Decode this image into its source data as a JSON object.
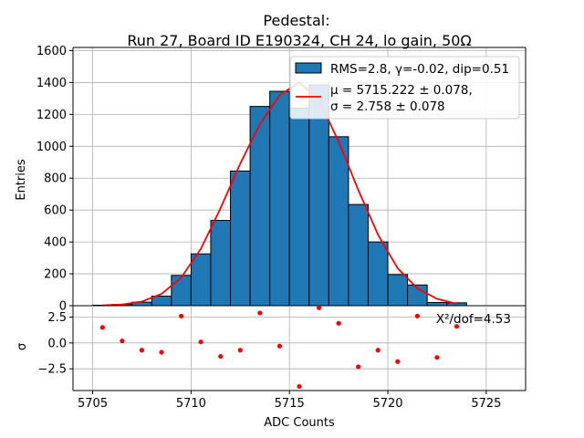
{
  "chart_data": [
    {
      "type": "bar",
      "panel": "histogram",
      "title_line1": "Pedestal:",
      "title_line2": "Run 27, Board ID E190324, CH 24, lo gain, 50Ω",
      "xlabel": "ADC Counts",
      "ylabel": "Entries",
      "xlim": [
        5704.0,
        5727.0
      ],
      "ylim": [
        0,
        1620
      ],
      "x_ticks": [
        5705,
        5710,
        5715,
        5720,
        5725
      ],
      "x_tick_labels": [
        "5705",
        "5710",
        "5715",
        "5720",
        "5725"
      ],
      "y_ticks": [
        0,
        200,
        400,
        600,
        800,
        1000,
        1200,
        1400,
        1600
      ],
      "y_tick_labels": [
        "0",
        "200",
        "400",
        "600",
        "800",
        "1000",
        "1200",
        "1400",
        "1600"
      ],
      "grid": true,
      "bin_edges": [
        5705,
        5706,
        5707,
        5708,
        5709,
        5710,
        5711,
        5712,
        5713,
        5714,
        5715,
        5716,
        5717,
        5718,
        5719,
        5720,
        5721,
        5722,
        5723,
        5724
      ],
      "bin_counts": [
        3,
        8,
        22,
        60,
        190,
        325,
        535,
        845,
        1250,
        1345,
        1240,
        1385,
        1060,
        635,
        400,
        195,
        130,
        20,
        18
      ],
      "bar_color": "#1f77b4",
      "fit_color": "#ff0000",
      "fit_curve": {
        "x": [
          5705.5,
          5706.5,
          5707.5,
          5708.5,
          5709.5,
          5710.5,
          5711.5,
          5712.5,
          5713.5,
          5714.5,
          5715.5,
          5716.5,
          5717.5,
          5718.5,
          5719.5,
          5720.5,
          5721.5,
          5722.5,
          5723.5
        ],
        "y": [
          2,
          8,
          26,
          74,
          176,
          357,
          611,
          891,
          1140,
          1320,
          1402,
          1290,
          1030,
          725,
          445,
          235,
          108,
          43,
          12
        ]
      },
      "legend": {
        "position": "top-right",
        "entries": [
          {
            "kind": "patch",
            "label": "RMS=2.8, γ=-0.02, dip=0.51"
          },
          {
            "kind": "line",
            "label_line1": "μ = 5715.222 ± 0.078,",
            "label_line2": "σ = 2.758 ± 0.078"
          }
        ]
      }
    },
    {
      "type": "scatter",
      "panel": "residuals",
      "ylabel": "σ",
      "xlabel": "ADC Counts",
      "xlim": [
        5704.0,
        5727.0
      ],
      "ylim": [
        -4.6,
        3.6
      ],
      "y_ticks": [
        -2.5,
        0.0,
        2.5
      ],
      "y_tick_labels": [
        "−2.5",
        "0.0",
        "2.5"
      ],
      "grid": true,
      "point_color": "#ff0000",
      "annotation": "X²/dof=4.53",
      "points": {
        "x": [
          5705.5,
          5706.5,
          5707.5,
          5708.5,
          5709.5,
          5710.5,
          5711.5,
          5712.5,
          5713.5,
          5714.5,
          5715.5,
          5716.5,
          5717.5,
          5718.5,
          5719.5,
          5720.5,
          5721.5,
          5722.5,
          5723.5
        ],
        "y": [
          1.5,
          0.2,
          -0.7,
          -0.9,
          2.6,
          0.1,
          -1.3,
          -0.7,
          2.9,
          -0.3,
          -4.2,
          3.4,
          1.9,
          -2.3,
          -0.7,
          -1.8,
          2.6,
          -1.4,
          1.6
        ]
      }
    }
  ]
}
